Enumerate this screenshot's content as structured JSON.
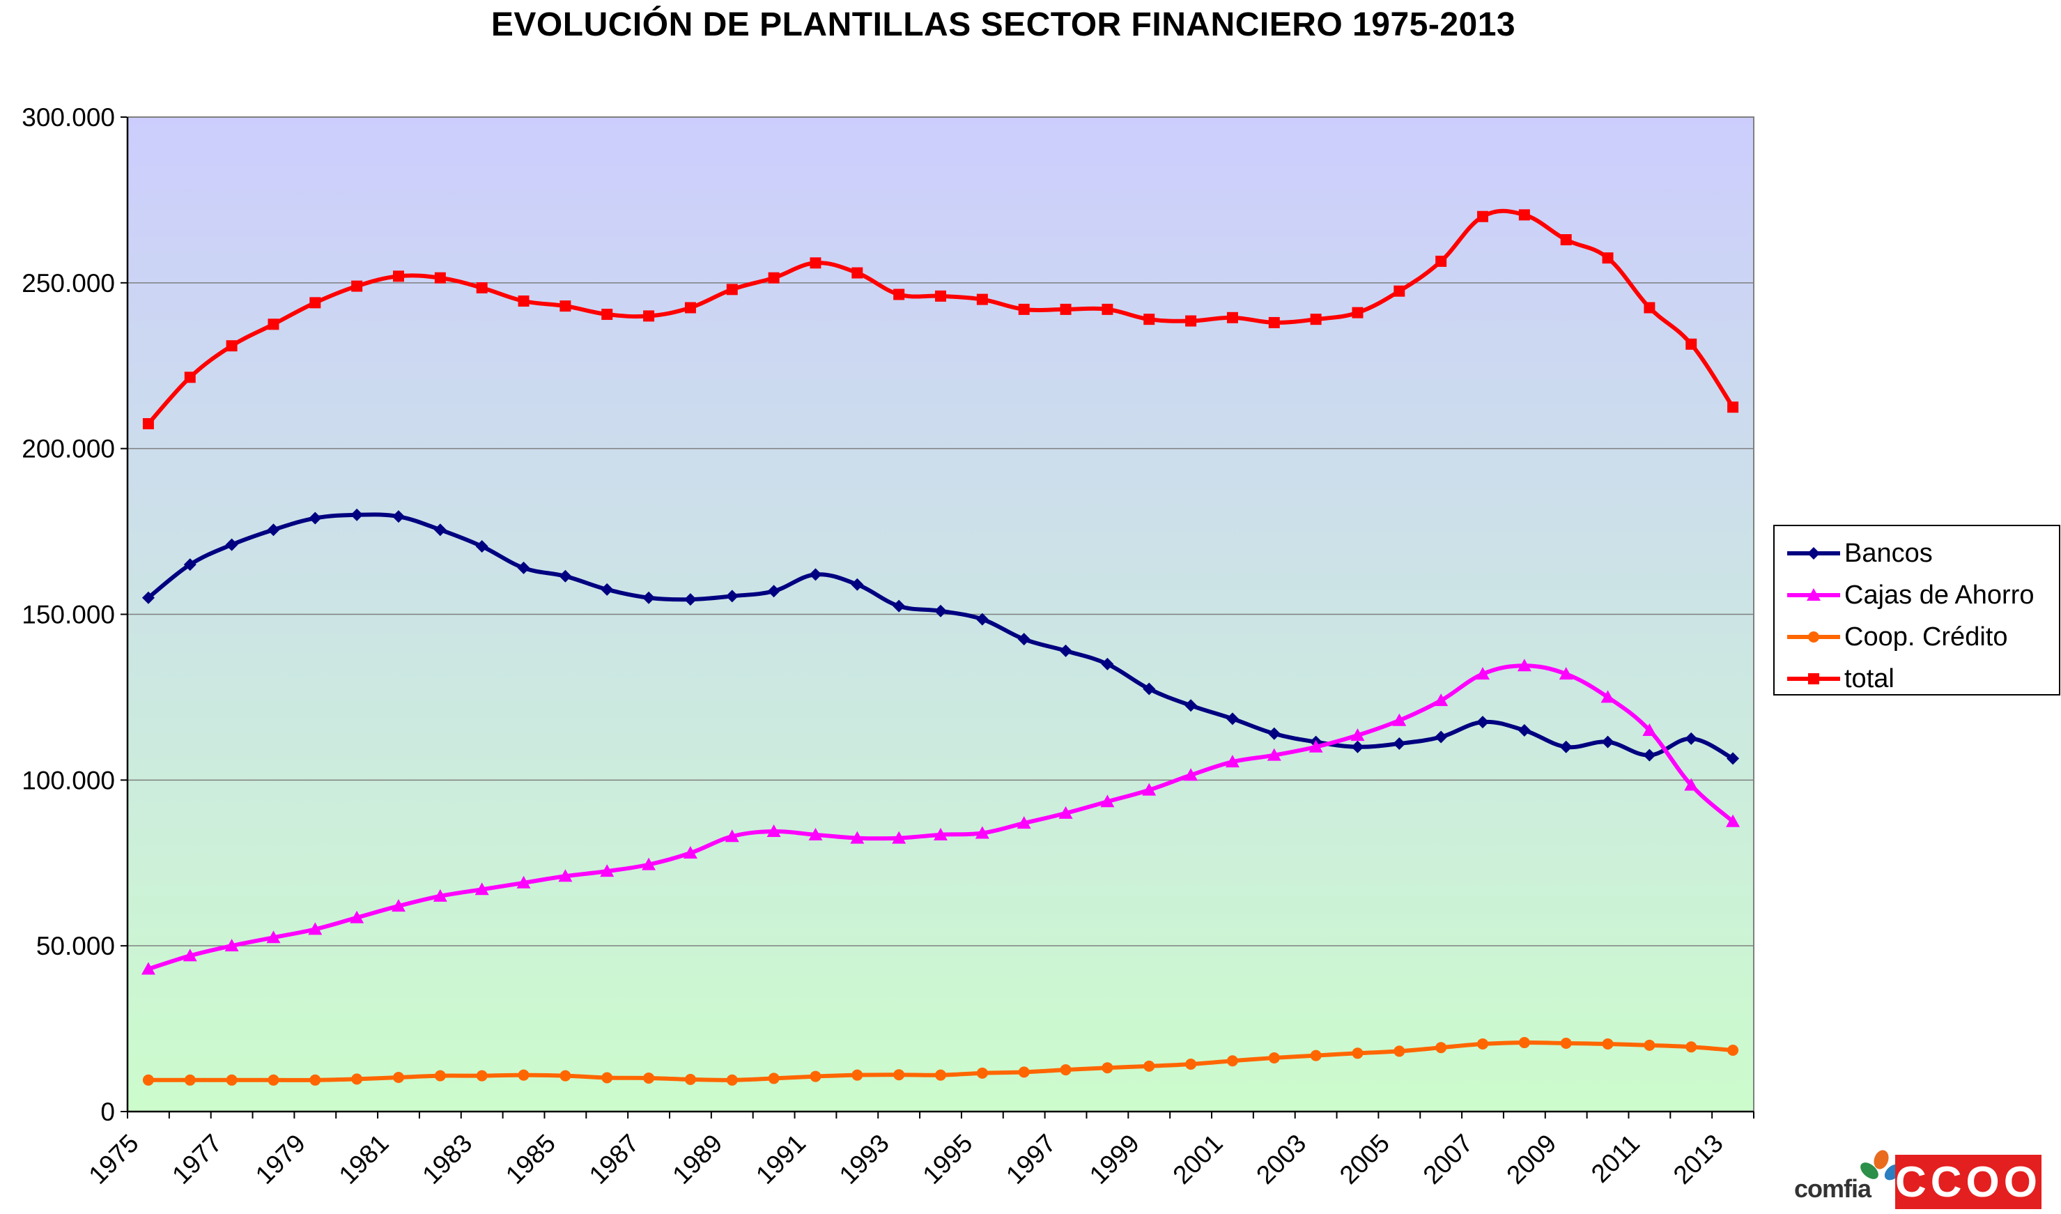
{
  "chart_data": {
    "type": "line",
    "title": "EVOLUCIÓN DE PLANTILLAS SECTOR FINANCIERO 1975-2013",
    "xlabel": "",
    "ylabel": "",
    "ylim": [
      0,
      300000
    ],
    "yticks": [
      {
        "value": 0,
        "label": "0"
      },
      {
        "value": 50000,
        "label": "50.000"
      },
      {
        "value": 100000,
        "label": "100.000"
      },
      {
        "value": 150000,
        "label": "150.000"
      },
      {
        "value": 200000,
        "label": "200.000"
      },
      {
        "value": 250000,
        "label": "250.000"
      },
      {
        "value": 300000,
        "label": "300.000"
      }
    ],
    "xtick_labels": [
      "1975",
      "1977",
      "1979",
      "1981",
      "1983",
      "1985",
      "1987",
      "1989",
      "1991",
      "1993",
      "1995",
      "1997",
      "1999",
      "2001",
      "2003",
      "2005",
      "2007",
      "2009",
      "2011",
      "2013"
    ],
    "x": [
      1975,
      1976,
      1977,
      1978,
      1979,
      1980,
      1981,
      1982,
      1983,
      1984,
      1985,
      1986,
      1987,
      1988,
      1989,
      1990,
      1991,
      1992,
      1993,
      1994,
      1995,
      1996,
      1997,
      1998,
      1999,
      2000,
      2001,
      2002,
      2003,
      2004,
      2005,
      2006,
      2007,
      2008,
      2009,
      2010,
      2011,
      2012,
      2013
    ],
    "grid": true,
    "legend_position": "right",
    "background_gradient": {
      "top": "#cccdfd",
      "bottom": "#ccfccc"
    },
    "series": [
      {
        "name": "Bancos",
        "color": "#000080",
        "marker": "diamond",
        "values": [
          155000,
          165000,
          171000,
          175500,
          179000,
          180000,
          179500,
          175500,
          170500,
          164000,
          161500,
          157500,
          155000,
          154500,
          155500,
          157000,
          162000,
          159000,
          152500,
          151000,
          148500,
          142500,
          139000,
          135000,
          127500,
          122500,
          118500,
          114000,
          111500,
          110000,
          111000,
          113000,
          117500,
          115000,
          110000,
          111500,
          107500,
          112500,
          106500
        ]
      },
      {
        "name": "Cajas de Ahorro",
        "color": "#ff00ff",
        "marker": "triangle",
        "values": [
          43000,
          47000,
          50000,
          52500,
          55000,
          58500,
          62000,
          65000,
          67000,
          69000,
          71000,
          72500,
          74500,
          78000,
          83000,
          84500,
          83500,
          82500,
          82500,
          83500,
          84000,
          87000,
          90000,
          93500,
          97000,
          101500,
          105500,
          107500,
          110000,
          113500,
          118000,
          124000,
          132000,
          134500,
          132000,
          125000,
          115000,
          98500,
          87500
        ]
      },
      {
        "name": "Coop. Crédito",
        "color": "#ff6600",
        "marker": "circle",
        "values": [
          9500,
          9500,
          9500,
          9500,
          9500,
          9800,
          10300,
          10800,
          10800,
          11000,
          10800,
          10200,
          10100,
          9700,
          9500,
          10000,
          10600,
          11000,
          11100,
          11000,
          11600,
          11900,
          12600,
          13200,
          13700,
          14300,
          15300,
          16200,
          16900,
          17600,
          18200,
          19300,
          20400,
          20800,
          20600,
          20400,
          20000,
          19500,
          18500
        ]
      },
      {
        "name": "total",
        "color": "#ff0000",
        "marker": "square",
        "values": [
          207500,
          221500,
          231000,
          237500,
          244000,
          249000,
          252000,
          251500,
          248500,
          244500,
          243000,
          240500,
          240000,
          242500,
          248000,
          251500,
          256000,
          253000,
          246500,
          246000,
          245000,
          242000,
          242000,
          242000,
          239000,
          238500,
          239500,
          238000,
          239000,
          241000,
          247500,
          256500,
          270000,
          270500,
          263000,
          257500,
          242500,
          231500,
          212500
        ]
      }
    ]
  },
  "branding": {
    "comfia_label": "comfia",
    "ccoo_label": "CCOO",
    "ccoo_color": "#e41f1f"
  }
}
